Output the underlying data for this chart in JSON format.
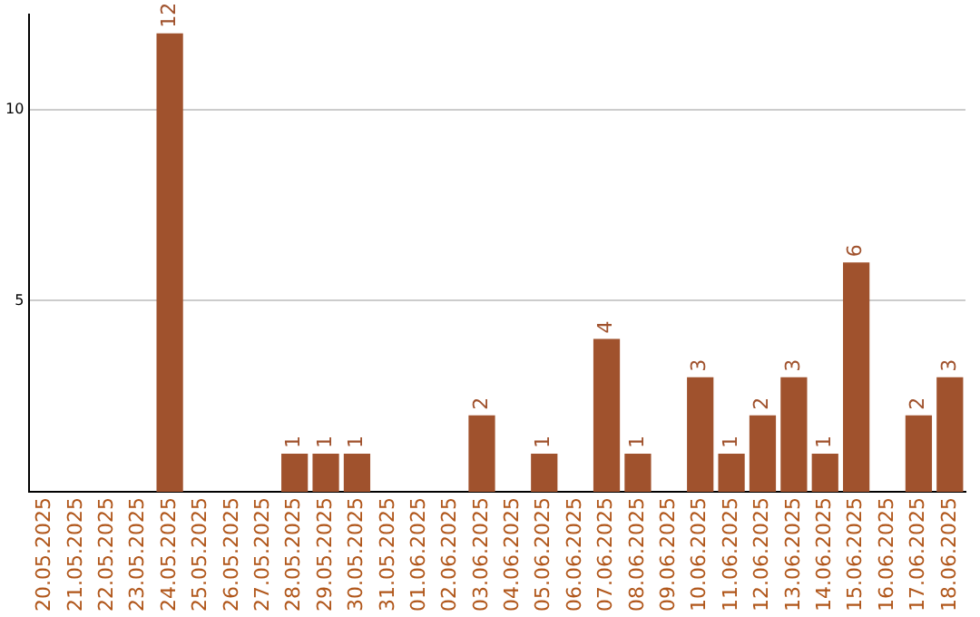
{
  "chart_data": {
    "type": "bar",
    "categories": [
      "20.05.2025",
      "21.05.2025",
      "22.05.2025",
      "23.05.2025",
      "24.05.2025",
      "25.05.2025",
      "26.05.2025",
      "27.05.2025",
      "28.05.2025",
      "29.05.2025",
      "30.05.2025",
      "31.05.2025",
      "01.06.2025",
      "02.06.2025",
      "03.06.2025",
      "04.06.2025",
      "05.06.2025",
      "06.06.2025",
      "07.06.2025",
      "08.06.2025",
      "09.06.2025",
      "10.06.2025",
      "11.06.2025",
      "12.06.2025",
      "13.06.2025",
      "14.06.2025",
      "15.06.2025",
      "16.06.2025",
      "17.06.2025",
      "18.06.2025"
    ],
    "values": [
      0,
      0,
      0,
      0,
      12,
      0,
      0,
      0,
      1,
      1,
      1,
      0,
      0,
      0,
      2,
      0,
      1,
      0,
      4,
      1,
      0,
      3,
      1,
      2,
      3,
      1,
      6,
      0,
      2,
      3
    ],
    "value_labels": [
      null,
      null,
      null,
      null,
      "12",
      null,
      null,
      null,
      "1",
      "1",
      "1",
      null,
      null,
      null,
      "2",
      null,
      "1",
      null,
      "4",
      "1",
      null,
      "3",
      "1",
      "2",
      "3",
      "1",
      "6",
      null,
      "2",
      "3"
    ],
    "color": "#a0522d",
    "ylim": [
      0,
      12.5
    ],
    "yticks": [
      5,
      10
    ],
    "grid": "y",
    "legend": false
  }
}
